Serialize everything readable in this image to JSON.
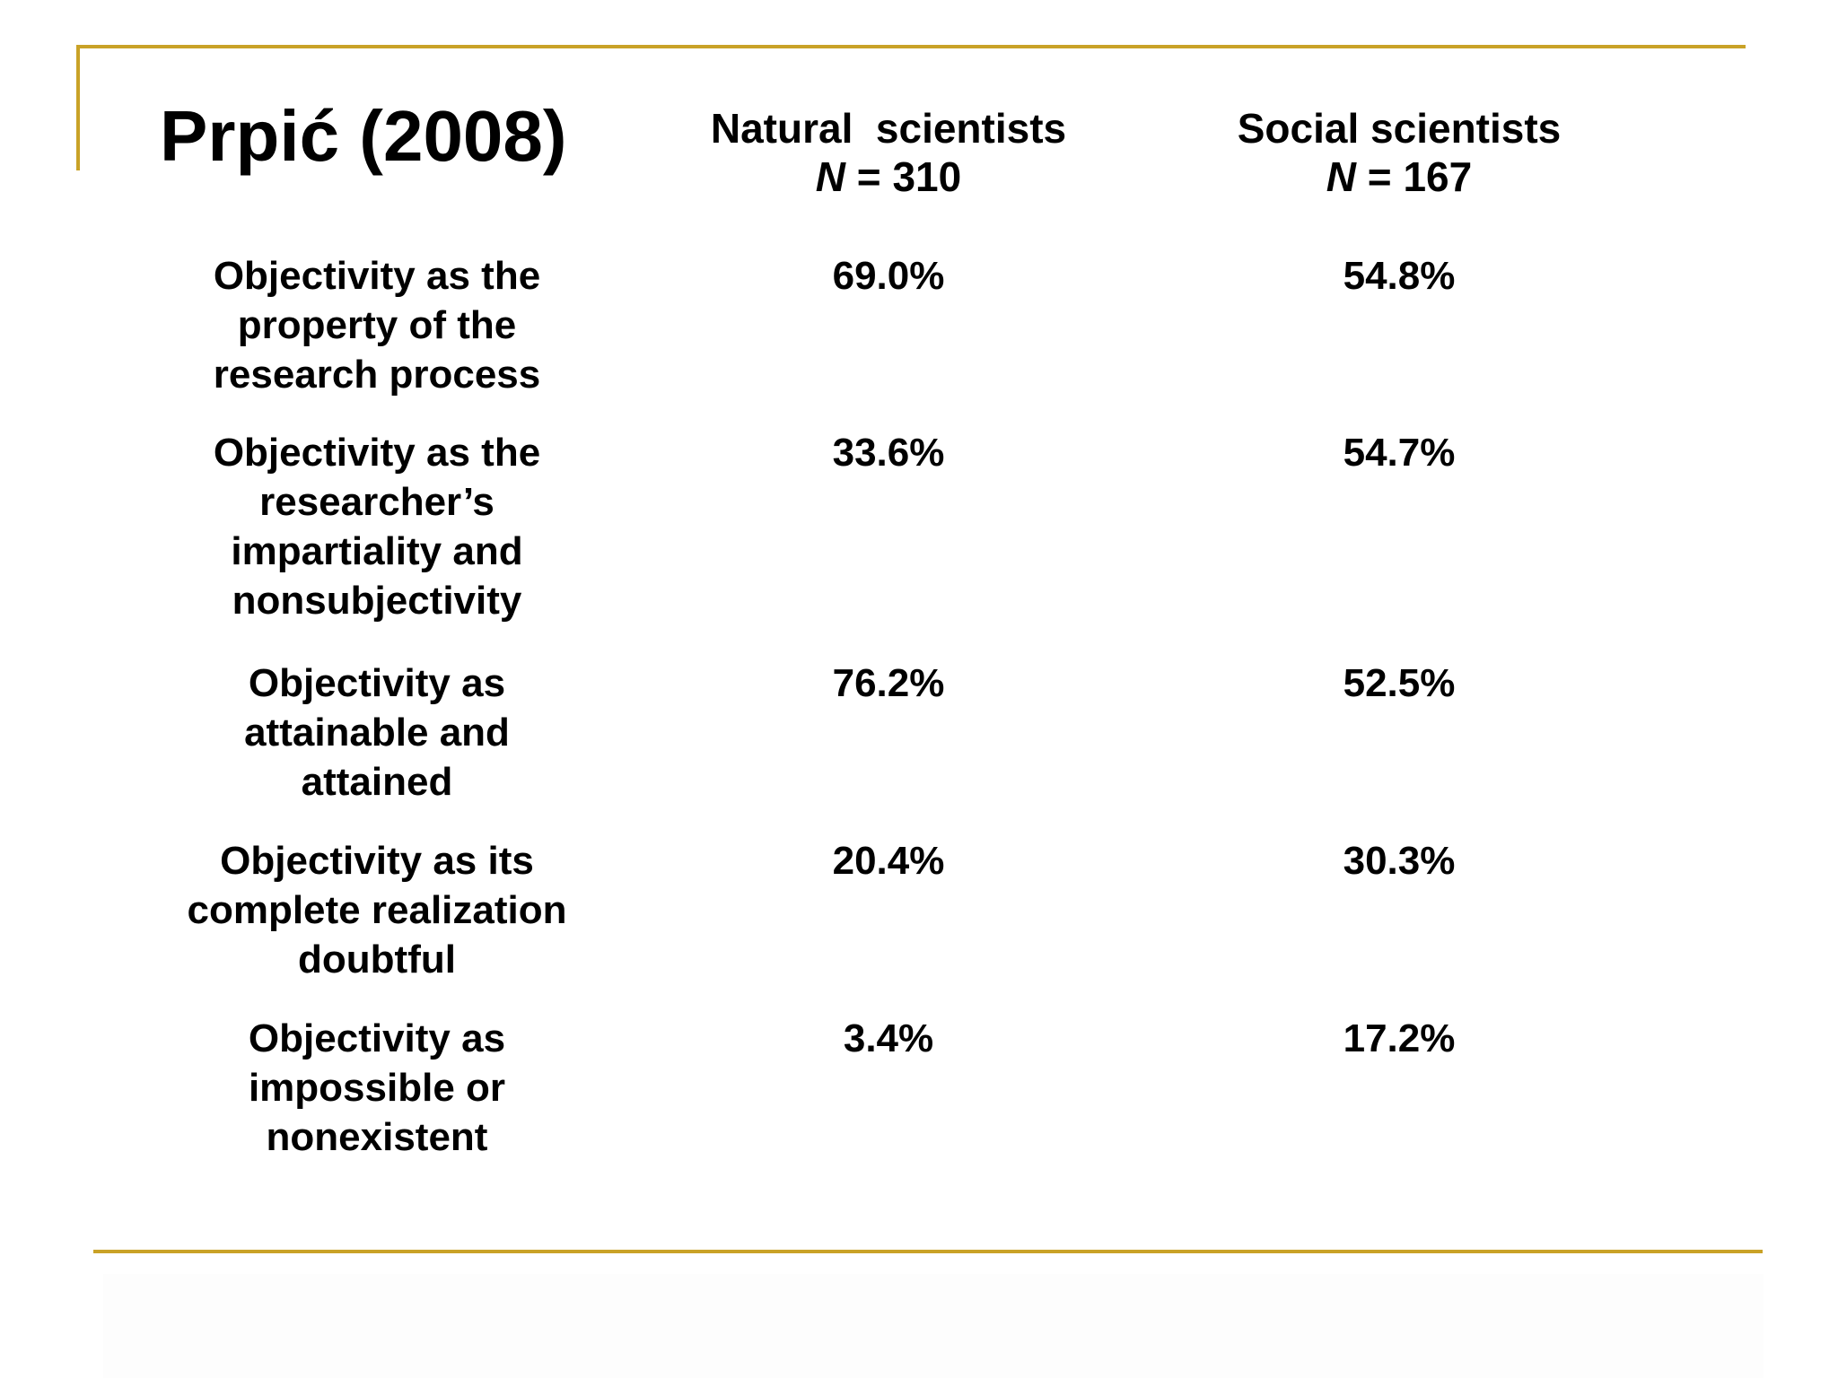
{
  "title": "Prpić (2008)",
  "columns": [
    {
      "name": "Natural  scientists",
      "n_label": "N",
      "n_rest": " = 310"
    },
    {
      "name": "Social scientists",
      "n_label": "N",
      "n_rest": " = 167"
    }
  ],
  "rows": [
    {
      "label_lines": [
        "Objectivity as the",
        "property of the",
        "research process"
      ],
      "natural": "69.0%",
      "social": "54.8%"
    },
    {
      "label_lines": [
        "Objectivity as the",
        "researcher’s",
        "impartiality and",
        "nonsubjectivity"
      ],
      "natural": "33.6%",
      "social": "54.7%"
    },
    {
      "label_lines": [
        "Objectivity as",
        "attainable and",
        "attained"
      ],
      "natural": "76.2%",
      "social": "52.5%"
    },
    {
      "label_lines": [
        "Objectivity as its",
        "complete realization",
        "doubtful"
      ],
      "natural": "20.4%",
      "social": "30.3%"
    },
    {
      "label_lines": [
        "Objectivity as",
        "impossible or",
        "nonexistent"
      ],
      "natural": "3.4%",
      "social": "17.2%"
    }
  ],
  "colors": {
    "accent_rule": "#c9a227",
    "text": "#000000",
    "background": "#ffffff"
  }
}
